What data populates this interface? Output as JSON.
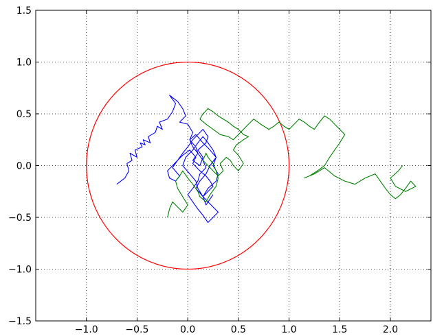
{
  "chart_data": {
    "type": "line",
    "title": "",
    "xlabel": "",
    "ylabel": "",
    "xlim": [
      -1.5,
      2.4
    ],
    "ylim": [
      -1.5,
      1.5
    ],
    "x_ticks": [
      -1.0,
      -0.5,
      0.0,
      0.5,
      1.0,
      1.5,
      2.0
    ],
    "x_tick_labels": [
      "−1.0",
      "−0.5",
      "0.0",
      "0.5",
      "1.0",
      "1.5",
      "2.0"
    ],
    "y_ticks": [
      1.5,
      1.0,
      0.5,
      0.0,
      -0.5,
      -1.0,
      -1.5
    ],
    "y_tick_labels": [
      "1.5",
      "1.0",
      "0.5",
      "0.0",
      "−0.5",
      "−1.0",
      "−1.5"
    ],
    "grid": true,
    "grid_style": "dotted",
    "legend": "none",
    "circle": {
      "center": [
        0,
        0
      ],
      "radius": 1.0,
      "color": "#ff0000"
    },
    "series": [
      {
        "color": "#0000ff",
        "x": [
          -0.7,
          -0.62,
          -0.58,
          -0.6,
          -0.55,
          -0.57,
          -0.5,
          -0.52,
          -0.45,
          -0.47,
          -0.42,
          -0.44,
          -0.37,
          -0.39,
          -0.32,
          -0.3,
          -0.25,
          -0.28,
          -0.2,
          -0.15,
          -0.12,
          -0.18,
          -0.1,
          -0.05,
          -0.02,
          -0.08,
          0.0,
          0.05,
          0.02,
          0.08,
          0.1,
          0.05,
          0.12,
          0.15,
          0.1,
          0.18,
          0.2,
          0.15,
          0.1,
          0.05,
          0.0,
          -0.05,
          -0.1,
          -0.15,
          -0.2,
          -0.18,
          -0.12,
          -0.08,
          -0.15,
          -0.1,
          -0.05,
          0.02,
          0.08,
          0.05,
          0.12,
          0.18,
          0.22,
          0.25,
          0.2,
          0.15,
          0.1,
          0.08,
          0.02,
          -0.05,
          -0.02,
          0.05,
          0.1,
          0.15,
          0.2,
          0.25,
          0.28,
          0.22,
          0.18,
          0.12,
          0.08,
          0.15,
          0.2,
          0.25,
          0.3,
          0.25,
          0.2,
          0.15,
          0.1,
          0.05,
          0.0,
          0.05,
          0.1,
          0.12,
          0.18,
          0.15,
          0.1,
          0.05,
          0.02,
          0.08,
          0.15,
          0.22,
          0.28,
          0.25,
          0.3,
          0.28,
          0.2,
          0.15,
          0.18,
          0.25
        ],
        "y": [
          -0.18,
          -0.12,
          -0.05,
          0.02,
          0.05,
          0.12,
          0.08,
          0.15,
          0.18,
          0.22,
          0.2,
          0.25,
          0.22,
          0.28,
          0.32,
          0.38,
          0.35,
          0.42,
          0.45,
          0.52,
          0.6,
          0.68,
          0.62,
          0.55,
          0.48,
          0.42,
          0.4,
          0.32,
          0.25,
          0.18,
          0.12,
          0.05,
          0.0,
          0.08,
          0.15,
          0.22,
          0.28,
          0.35,
          0.3,
          0.25,
          0.18,
          0.12,
          0.05,
          0.0,
          -0.05,
          -0.12,
          -0.15,
          -0.1,
          -0.02,
          0.05,
          0.1,
          0.15,
          0.08,
          0.02,
          -0.05,
          -0.1,
          -0.15,
          -0.2,
          -0.25,
          -0.3,
          -0.22,
          -0.15,
          -0.08,
          0.0,
          0.08,
          0.15,
          0.22,
          0.28,
          0.22,
          0.15,
          0.08,
          0.0,
          -0.08,
          -0.15,
          -0.22,
          -0.3,
          -0.35,
          -0.4,
          -0.45,
          -0.5,
          -0.55,
          -0.48,
          -0.42,
          -0.35,
          -0.28,
          -0.22,
          -0.15,
          -0.08,
          -0.02,
          0.05,
          0.12,
          0.18,
          0.25,
          0.3,
          0.22,
          0.15,
          0.08,
          0.0,
          -0.08,
          -0.15,
          -0.22,
          -0.3,
          -0.38,
          -0.28
        ]
      },
      {
        "color": "#008000",
        "x": [
          -0.2,
          -0.18,
          -0.15,
          -0.1,
          -0.05,
          0.0,
          -0.05,
          -0.1,
          -0.12,
          -0.08,
          -0.05,
          0.0,
          0.05,
          0.1,
          0.12,
          0.18,
          0.22,
          0.28,
          0.3,
          0.28,
          0.25,
          0.2,
          0.18,
          0.15,
          0.2,
          0.25,
          0.3,
          0.35,
          0.32,
          0.38,
          0.42,
          0.45,
          0.5,
          0.55,
          0.5,
          0.45,
          0.48,
          0.55,
          0.6,
          0.55,
          0.5,
          0.45,
          0.4,
          0.35,
          0.3,
          0.25,
          0.2,
          0.15,
          0.12,
          0.18,
          0.25,
          0.32,
          0.4,
          0.45,
          0.5,
          0.55,
          0.6,
          0.65,
          0.72,
          0.8,
          0.85,
          0.9,
          0.95,
          1.0,
          1.05,
          1.1,
          1.15,
          1.2,
          1.25,
          1.3,
          1.35,
          1.4,
          1.45,
          1.5,
          1.55,
          1.5,
          1.45,
          1.4,
          1.35,
          1.28,
          1.2,
          1.15,
          1.25,
          1.35,
          1.45,
          1.55,
          1.65,
          1.75,
          1.85,
          1.9,
          1.95,
          2.0,
          2.05,
          2.1,
          2.15,
          2.2,
          2.25,
          2.15,
          2.05,
          2.0,
          2.08,
          2.12
        ],
        "y": [
          -0.5,
          -0.42,
          -0.35,
          -0.4,
          -0.45,
          -0.38,
          -0.3,
          -0.22,
          -0.15,
          -0.1,
          -0.05,
          -0.12,
          -0.18,
          -0.25,
          -0.3,
          -0.35,
          -0.28,
          -0.2,
          -0.12,
          -0.05,
          0.02,
          0.08,
          0.12,
          0.05,
          0.0,
          -0.05,
          -0.1,
          -0.05,
          0.02,
          0.08,
          0.05,
          0.0,
          -0.05,
          0.02,
          0.1,
          0.15,
          0.2,
          0.25,
          0.28,
          0.3,
          0.35,
          0.38,
          0.42,
          0.45,
          0.48,
          0.52,
          0.55,
          0.5,
          0.45,
          0.4,
          0.35,
          0.3,
          0.28,
          0.25,
          0.3,
          0.35,
          0.4,
          0.45,
          0.4,
          0.35,
          0.38,
          0.42,
          0.38,
          0.35,
          0.4,
          0.45,
          0.42,
          0.38,
          0.35,
          0.42,
          0.48,
          0.45,
          0.4,
          0.35,
          0.3,
          0.22,
          0.15,
          0.08,
          0.0,
          -0.05,
          -0.1,
          -0.12,
          -0.08,
          -0.02,
          -0.1,
          -0.15,
          -0.18,
          -0.12,
          -0.08,
          -0.15,
          -0.22,
          -0.28,
          -0.32,
          -0.28,
          -0.22,
          -0.15,
          -0.2,
          -0.25,
          -0.2,
          -0.12,
          -0.05,
          0.0
        ]
      }
    ]
  }
}
